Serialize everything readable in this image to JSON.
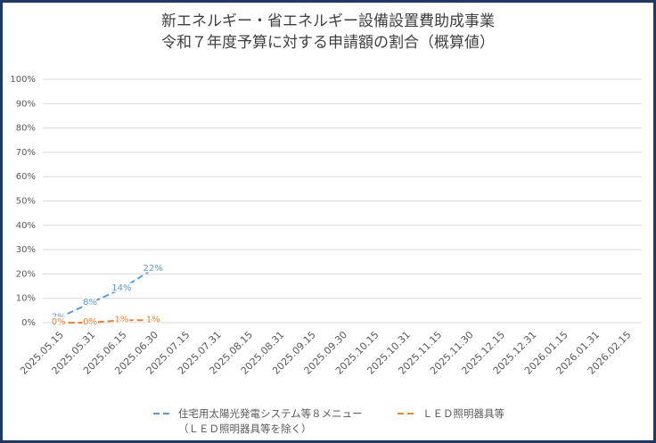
{
  "chart_data": {
    "type": "line",
    "title": "新エネルギー・省エネルギー設備設置費助成事業",
    "subtitle": "令和７年度予算に対する申請額の割合（概算値）",
    "categories": [
      "2025.05.15",
      "2025.05.31",
      "2025.06.15",
      "2025.06.30",
      "2025.07.15",
      "2025.07.31",
      "2025.08.15",
      "2025.08.31",
      "2025.09.15",
      "2025.09.30",
      "2025.10.15",
      "2025.10.31",
      "2025.11.15",
      "2025.11.30",
      "2025.12.15",
      "2025.12.31",
      "2026.01.15",
      "2026.01.31",
      "2026.02.15"
    ],
    "series": [
      {
        "name": "住宅用太陽光発電システム等８メニュー（ＬＥＤ照明器具等を除く）",
        "color": "#5b9bd5",
        "values": [
          2,
          8,
          14,
          22,
          null,
          null,
          null,
          null,
          null,
          null,
          null,
          null,
          null,
          null,
          null,
          null,
          null,
          null,
          null
        ],
        "value_labels": [
          "2%",
          "8%",
          "14%",
          "22%",
          null,
          null,
          null,
          null,
          null,
          null,
          null,
          null,
          null,
          null,
          null,
          null,
          null,
          null,
          null
        ]
      },
      {
        "name": "ＬＥＤ照明器具等",
        "color": "#ed7d31",
        "values": [
          0,
          0,
          1,
          1,
          null,
          null,
          null,
          null,
          null,
          null,
          null,
          null,
          null,
          null,
          null,
          null,
          null,
          null,
          null
        ],
        "value_labels": [
          "0%",
          "0%",
          "1%",
          "1%",
          null,
          null,
          null,
          null,
          null,
          null,
          null,
          null,
          null,
          null,
          null,
          null,
          null,
          null,
          null
        ]
      }
    ],
    "ylim": [
      0,
      100
    ],
    "yticks": [
      {
        "value": 0,
        "label": "0%"
      },
      {
        "value": 10,
        "label": "10%"
      },
      {
        "value": 20,
        "label": "20%"
      },
      {
        "value": 30,
        "label": "30%"
      },
      {
        "value": 40,
        "label": "40%"
      },
      {
        "value": 50,
        "label": "50%"
      },
      {
        "value": 60,
        "label": "60%"
      },
      {
        "value": 70,
        "label": "70%"
      },
      {
        "value": 80,
        "label": "80%"
      },
      {
        "value": 90,
        "label": "90%"
      },
      {
        "value": 100,
        "label": "100%"
      }
    ],
    "grid": true,
    "legend": "bottom",
    "dashed": true
  }
}
